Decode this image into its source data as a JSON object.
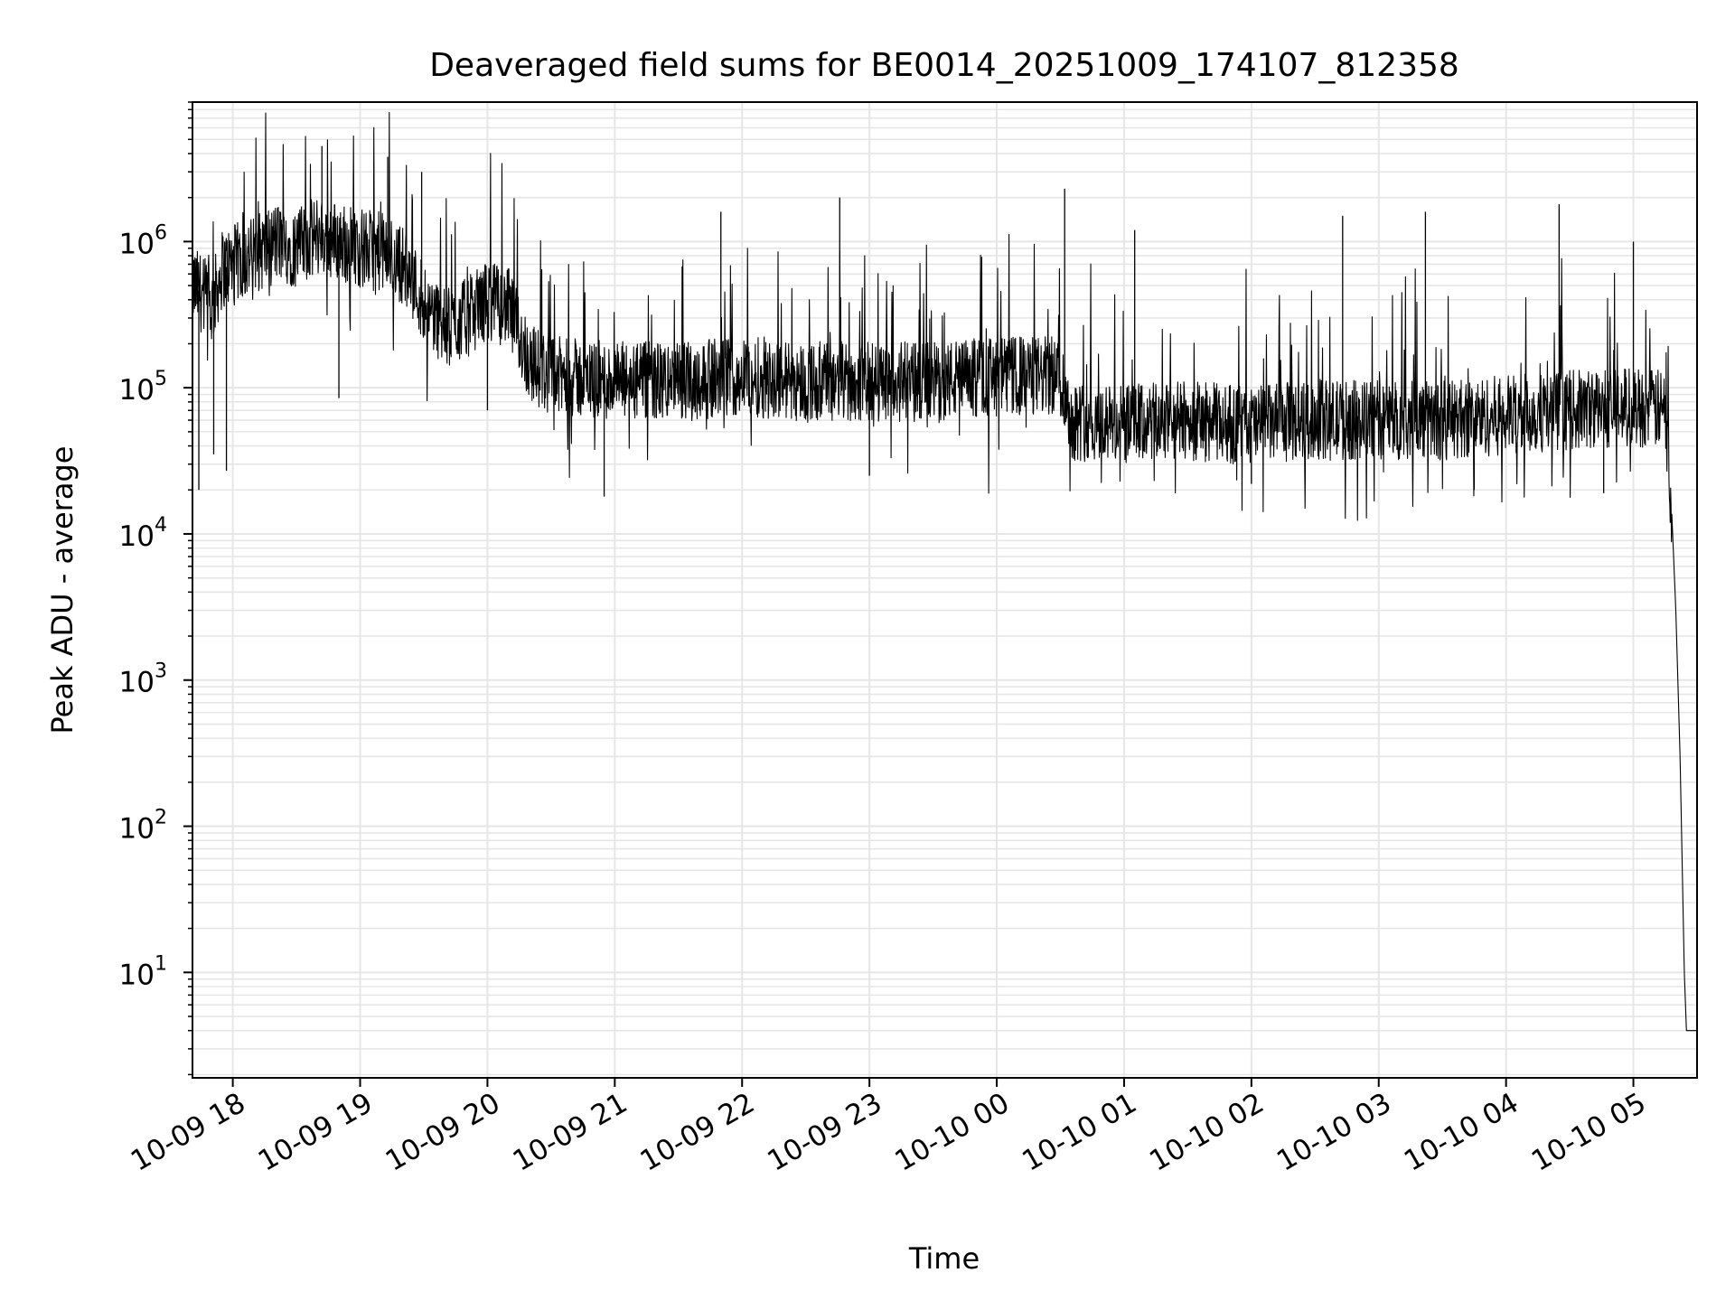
{
  "chart_data": {
    "type": "line",
    "title": "Deaveraged field sums for BE0014_20251009_174107_812358",
    "xlabel": "Time",
    "ylabel": "Peak ADU - average",
    "yscale": "log",
    "grid": true,
    "line_color": "#000000",
    "grid_color": "#e6e6e6",
    "ylim": [
      1.9,
      9000000
    ],
    "xlim": [
      "2025-10-09 17:41",
      "2025-10-10 05:30"
    ],
    "x_ticks": [
      {
        "time": "2025-10-09 18:00",
        "label": "10-09 18"
      },
      {
        "time": "2025-10-09 19:00",
        "label": "10-09 19"
      },
      {
        "time": "2025-10-09 20:00",
        "label": "10-09 20"
      },
      {
        "time": "2025-10-09 21:00",
        "label": "10-09 21"
      },
      {
        "time": "2025-10-09 22:00",
        "label": "10-09 22"
      },
      {
        "time": "2025-10-09 23:00",
        "label": "10-09 23"
      },
      {
        "time": "2025-10-10 00:00",
        "label": "10-10 00"
      },
      {
        "time": "2025-10-10 01:00",
        "label": "10-10 01"
      },
      {
        "time": "2025-10-10 02:00",
        "label": "10-10 02"
      },
      {
        "time": "2025-10-10 03:00",
        "label": "10-10 03"
      },
      {
        "time": "2025-10-10 04:00",
        "label": "10-10 04"
      },
      {
        "time": "2025-10-10 05:00",
        "label": "10-10 05"
      }
    ],
    "y_ticks": [
      {
        "value": 10,
        "base": "10",
        "exp": "1"
      },
      {
        "value": 100,
        "base": "10",
        "exp": "2"
      },
      {
        "value": 1000,
        "base": "10",
        "exp": "3"
      },
      {
        "value": 10000,
        "base": "10",
        "exp": "4"
      },
      {
        "value": 100000,
        "base": "10",
        "exp": "5"
      },
      {
        "value": 1000000,
        "base": "10",
        "exp": "6"
      }
    ],
    "series": [
      {
        "x": [
          "2025-10-09 17:41",
          "2025-10-09 17:45",
          "2025-10-09 17:50",
          "2025-10-09 17:55",
          "2025-10-09 18:00",
          "2025-10-09 18:10",
          "2025-10-09 18:20",
          "2025-10-09 18:30",
          "2025-10-09 18:40",
          "2025-10-09 18:50",
          "2025-10-09 19:00",
          "2025-10-09 19:10",
          "2025-10-09 19:20",
          "2025-10-09 19:30",
          "2025-10-09 19:40",
          "2025-10-09 19:50",
          "2025-10-09 20:00",
          "2025-10-09 20:10",
          "2025-10-09 20:20",
          "2025-10-09 20:30",
          "2025-10-09 21:00",
          "2025-10-09 21:30",
          "2025-10-09 22:00",
          "2025-10-09 22:30",
          "2025-10-09 23:00",
          "2025-10-09 23:30",
          "2025-10-10 00:00",
          "2025-10-10 00:30",
          "2025-10-10 00:35",
          "2025-10-10 01:00",
          "2025-10-10 01:30",
          "2025-10-10 02:00",
          "2025-10-10 02:30",
          "2025-10-10 03:00",
          "2025-10-10 03:30",
          "2025-10-10 04:00",
          "2025-10-10 04:30",
          "2025-10-10 05:00",
          "2025-10-10 05:15",
          "2025-10-10 05:18",
          "2025-10-10 05:20",
          "2025-10-10 05:22",
          "2025-10-10 05:24",
          "2025-10-10 05:25",
          "2025-10-10 05:30"
        ],
        "y": [
          500000,
          450000,
          350000,
          650000,
          700000,
          800000,
          1000000,
          900000,
          1100000,
          1000000,
          900000,
          850000,
          700000,
          400000,
          250000,
          300000,
          400000,
          350000,
          150000,
          120000,
          110000,
          110000,
          120000,
          110000,
          110000,
          110000,
          120000,
          120000,
          60000,
          55000,
          60000,
          55000,
          60000,
          60000,
          60000,
          65000,
          70000,
          75000,
          70000,
          15000,
          3000,
          300,
          10,
          4,
          4
        ],
        "spikes": [
          {
            "x": "2025-10-09 17:44",
            "y": 20000
          },
          {
            "x": "2025-10-09 17:51",
            "y": 35000
          },
          {
            "x": "2025-10-09 17:57",
            "y": 27000
          },
          {
            "x": "2025-10-09 18:42",
            "y": 4500000
          },
          {
            "x": "2025-10-09 18:50",
            "y": 85000
          },
          {
            "x": "2025-10-09 19:13",
            "y": 3800000
          },
          {
            "x": "2025-10-09 19:29",
            "y": 3000000
          },
          {
            "x": "2025-10-09 20:00",
            "y": 70000
          },
          {
            "x": "2025-10-09 20:55",
            "y": 18000
          },
          {
            "x": "2025-10-09 21:50",
            "y": 1600000
          },
          {
            "x": "2025-10-09 22:46",
            "y": 2000000
          },
          {
            "x": "2025-10-09 23:00",
            "y": 25000
          },
          {
            "x": "2025-10-10 00:32",
            "y": 2300000
          },
          {
            "x": "2025-10-10 01:05",
            "y": 1200000
          },
          {
            "x": "2025-10-10 02:00",
            "y": 22000
          },
          {
            "x": "2025-10-10 02:43",
            "y": 1500000
          },
          {
            "x": "2025-10-10 03:22",
            "y": 1600000
          },
          {
            "x": "2025-10-10 03:45",
            "y": 20000
          },
          {
            "x": "2025-10-10 04:25",
            "y": 1800000
          },
          {
            "x": "2025-10-10 04:46",
            "y": 19000
          },
          {
            "x": "2025-10-10 05:00",
            "y": 1000000
          }
        ]
      }
    ]
  }
}
